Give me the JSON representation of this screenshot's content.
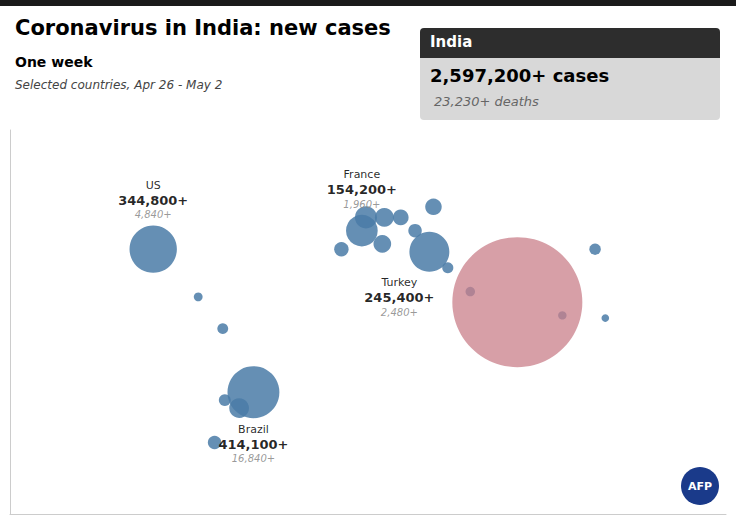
{
  "chart_data": {
    "type": "scatter",
    "title": "Coronavirus in India: new cases",
    "subtitle": "One week",
    "annotations": [
      "Selected countries, Apr 26 - May 2",
      "AFP"
    ],
    "xlim": [
      -170,
      180
    ],
    "ylim": [
      -60,
      85
    ],
    "tick_labels": false,
    "grid": false,
    "series": [
      {
        "color": "#4a7ba7",
        "points": [
          {
            "x": -58,
            "y": -20,
            "size": 60000
          },
          {
            "x": -70,
            "y": -33,
            "size": 28000
          },
          {
            "x": -65,
            "y": -17,
            "size": 22000
          },
          {
            "x": -66,
            "y": 10,
            "size": 18000
          },
          {
            "x": -78,
            "y": 22,
            "size": 12000
          },
          {
            "x": 4,
            "y": 52,
            "size": 75000
          },
          {
            "x": 13,
            "y": 52,
            "size": 55000
          },
          {
            "x": 21,
            "y": 52,
            "size": 38000
          },
          {
            "x": 28,
            "y": 47,
            "size": 28000
          },
          {
            "x": 12,
            "y": 42,
            "size": 48000
          },
          {
            "x": -8,
            "y": 40,
            "size": 32000
          },
          {
            "x": 37,
            "y": 56,
            "size": 42000
          },
          {
            "x": 44,
            "y": 33,
            "size": 19000
          },
          {
            "x": 55,
            "y": 24,
            "size": 14000
          },
          {
            "x": 100,
            "y": 15,
            "size": 11000
          },
          {
            "x": 121,
            "y": 14,
            "size": 9000
          },
          {
            "x": 116,
            "y": 40,
            "size": 20000
          },
          {
            "name": "US",
            "x": -100,
            "y": 40,
            "size": 344800,
            "size_label": "344,800+",
            "deaths_label": "4,840+"
          },
          {
            "name": "France",
            "x": 2,
            "y": 47,
            "size": 154200,
            "size_label": "154,200+",
            "deaths_label": "1,960+"
          },
          {
            "name": "Turkey",
            "x": 35,
            "y": 39,
            "size": 245400,
            "size_label": "245,400+",
            "deaths_label": "2,480+"
          },
          {
            "name": "Brazil",
            "x": -51,
            "y": -14,
            "size": 414100,
            "size_label": "414,100+",
            "deaths_label": "16,840+"
          }
        ]
      },
      {
        "color": "#c97f8a",
        "points": [
          {
            "name": "India",
            "x": 78,
            "y": 20,
            "size": 2597200,
            "size_label": "2,597,200+ cases",
            "deaths_label": "23,230+ deaths"
          }
        ]
      }
    ]
  }
}
